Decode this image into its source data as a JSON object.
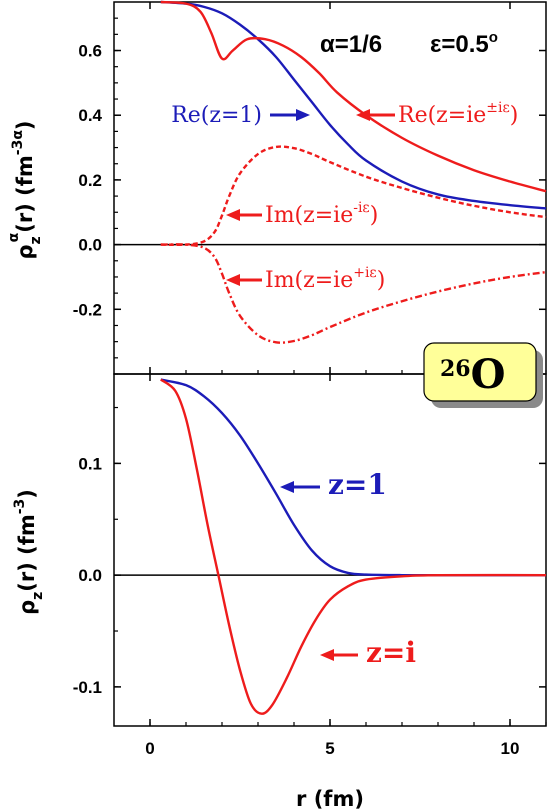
{
  "colors": {
    "blue": "#1c1cb8",
    "red": "#ee1c1c",
    "box": "#ffff99",
    "box_shadow": "#8a8a8a"
  },
  "nucleus_label": {
    "mass": "26",
    "symbol": "O"
  },
  "chart_data": [
    {
      "type": "line",
      "panel": "top",
      "ylabel": {
        "rho": "ρ",
        "sub": "z",
        "sup": "α",
        "rest": "(r) (fm",
        "unit_exp": "-3α",
        "close": ")"
      },
      "params": {
        "alpha": "α=1/6",
        "eps": "ε=0.5",
        "deg": "o"
      },
      "xlim": [
        -1,
        11
      ],
      "ylim": [
        -0.4,
        0.75
      ],
      "yticks": [
        {
          "value": -0.2,
          "label": "-0.2"
        },
        {
          "value": 0.0,
          "label": "0.0"
        },
        {
          "value": 0.2,
          "label": "0.2"
        },
        {
          "value": 0.4,
          "label": "0.4"
        },
        {
          "value": 0.6,
          "label": "0.6"
        }
      ],
      "series": [
        {
          "name": "Re(z=1)",
          "color": "blue",
          "style": "solid",
          "x": [
            0.3,
            1.0,
            1.5,
            2.0,
            2.5,
            3.0,
            3.5,
            4.0,
            4.5,
            5.0,
            5.5,
            6.0,
            7.0,
            8.0,
            9.0,
            10.0,
            11.0
          ],
          "y": [
            0.75,
            0.745,
            0.735,
            0.715,
            0.68,
            0.635,
            0.58,
            0.51,
            0.44,
            0.37,
            0.31,
            0.26,
            0.195,
            0.155,
            0.135,
            0.122,
            0.112
          ]
        },
        {
          "name": "Re(z=ie±iε)",
          "color": "red",
          "style": "solid",
          "x": [
            0.3,
            1.0,
            1.4,
            1.7,
            2.0,
            2.3,
            2.7,
            3.2,
            3.7,
            4.2,
            4.7,
            5.2,
            6.0,
            7.0,
            8.0,
            9.0,
            10.0,
            11.0
          ],
          "y": [
            0.75,
            0.745,
            0.72,
            0.655,
            0.575,
            0.6,
            0.635,
            0.635,
            0.615,
            0.58,
            0.53,
            0.47,
            0.4,
            0.33,
            0.275,
            0.23,
            0.195,
            0.165
          ]
        },
        {
          "name": "Im(z=ie-iε)",
          "color": "red",
          "style": "dashed",
          "x": [
            0.3,
            1.0,
            1.5,
            1.8,
            2.0,
            2.2,
            2.5,
            3.0,
            3.5,
            4.0,
            4.5,
            5.0,
            6.0,
            7.0,
            8.0,
            9.0,
            10.0,
            11.0
          ],
          "y": [
            0.0,
            0.0,
            0.01,
            0.04,
            0.09,
            0.15,
            0.22,
            0.28,
            0.302,
            0.298,
            0.28,
            0.255,
            0.21,
            0.175,
            0.145,
            0.12,
            0.1,
            0.085
          ]
        },
        {
          "name": "Im(z=ie+iε)",
          "color": "red",
          "style": "dashdot",
          "x": [
            0.3,
            1.0,
            1.5,
            1.8,
            2.0,
            2.2,
            2.5,
            3.0,
            3.5,
            4.0,
            4.5,
            5.0,
            6.0,
            7.0,
            8.0,
            9.0,
            10.0,
            11.0
          ],
          "y": [
            0.0,
            0.0,
            -0.01,
            -0.04,
            -0.09,
            -0.15,
            -0.22,
            -0.28,
            -0.302,
            -0.298,
            -0.28,
            -0.255,
            -0.21,
            -0.175,
            -0.145,
            -0.12,
            -0.1,
            -0.085
          ]
        }
      ],
      "annotations": [
        {
          "series": "Re(z=1)",
          "text": "Re(z=1)",
          "color": "blue",
          "arrow": "right"
        },
        {
          "series": "Re(z=ie±iε)",
          "text": "Re(z=ie",
          "sup": "±iε",
          "close": ")",
          "color": "red",
          "arrow": "left"
        },
        {
          "series": "Im(z=ie-iε)",
          "text": "Im(z=ie",
          "sup": "-iε",
          "close": ")",
          "color": "red",
          "arrow": "left"
        },
        {
          "series": "Im(z=ie+iε)",
          "text": "Im(z=ie",
          "sup": "+iε",
          "close": ")",
          "color": "red",
          "arrow": "left"
        }
      ]
    },
    {
      "type": "line",
      "panel": "bottom",
      "xlabel": "r (fm)",
      "ylabel": {
        "rho": "ρ",
        "sub": "z",
        "rest": "(r) (fm",
        "unit_exp": "-3",
        "close": ")"
      },
      "xlim": [
        -1,
        11
      ],
      "ylim": [
        -0.135,
        0.18
      ],
      "xticks": [
        {
          "value": 0,
          "label": "0"
        },
        {
          "value": 5,
          "label": "5"
        },
        {
          "value": 10,
          "label": "10"
        }
      ],
      "yticks": [
        {
          "value": -0.1,
          "label": "-0.1"
        },
        {
          "value": 0.0,
          "label": "0.0"
        },
        {
          "value": 0.1,
          "label": "0.1"
        }
      ],
      "series": [
        {
          "name": "z=1",
          "color": "blue",
          "style": "solid",
          "x": [
            0.3,
            1.0,
            1.5,
            2.0,
            2.5,
            3.0,
            3.5,
            4.0,
            4.5,
            5.0,
            5.5,
            6.0,
            7.0,
            8.0,
            11.0
          ],
          "y": [
            0.175,
            0.17,
            0.16,
            0.145,
            0.125,
            0.1,
            0.073,
            0.045,
            0.022,
            0.008,
            0.002,
            0.0005,
            0.0,
            0.0,
            0.0
          ]
        },
        {
          "name": "z=i",
          "color": "red",
          "style": "solid",
          "x": [
            0.3,
            0.7,
            1.0,
            1.3,
            1.6,
            1.9,
            2.2,
            2.5,
            2.8,
            3.1,
            3.4,
            3.8,
            4.2,
            4.6,
            5.0,
            5.5,
            6.0,
            7.0,
            8.0,
            11.0
          ],
          "y": [
            0.175,
            0.165,
            0.14,
            0.095,
            0.045,
            0.0,
            -0.045,
            -0.085,
            -0.115,
            -0.124,
            -0.116,
            -0.092,
            -0.064,
            -0.04,
            -0.022,
            -0.01,
            -0.004,
            -0.001,
            0.0,
            0.0
          ]
        }
      ],
      "annotations": [
        {
          "series": "z=1",
          "text": "z=1",
          "color": "blue",
          "arrow": "left"
        },
        {
          "series": "z=i",
          "text": "z=i",
          "color": "red",
          "arrow": "left"
        }
      ]
    }
  ]
}
